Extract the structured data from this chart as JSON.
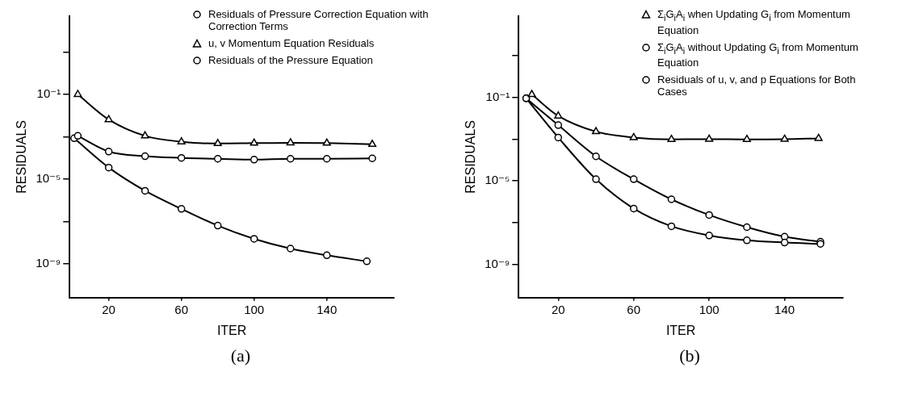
{
  "chart_data": [
    {
      "type": "line",
      "xlabel": "ITER",
      "ylabel": "RESIDUALS",
      "log": "y",
      "legend": "top right",
      "annotations": [
        "(a)"
      ],
      "xlim": [
        -1.5,
        177
      ],
      "xticks": [
        20,
        60,
        100,
        140
      ],
      "ylim": [
        2.5e-11,
        500
      ],
      "yticks": [
        {
          "value": 10,
          "label": null
        },
        {
          "value": 0.1,
          "label": "10⁻¹"
        },
        {
          "value": 0.001,
          "label": null
        },
        {
          "value": 1e-05,
          "label": "10⁻⁵"
        },
        {
          "value": 1e-07,
          "label": null
        },
        {
          "value": 1e-09,
          "label": "10⁻⁹"
        }
      ],
      "series": [
        {
          "name": "Residuals of Pressure Correction Equation with Correction Terms",
          "color": "#000000",
          "marker": "circle",
          "x": [
            3,
            20,
            40,
            60,
            80,
            100,
            120,
            140,
            165
          ],
          "values": [
            0.0011,
            0.0002,
            0.00012,
            0.0001,
            9.1e-05,
            8.3e-05,
            9.1e-05,
            9.1e-05,
            9.5e-05
          ]
        },
        {
          "name": "u, v  Momentum Equation Residuals",
          "color": "#000000",
          "marker": "triangle",
          "x": [
            3,
            20,
            40,
            60,
            80,
            100,
            120,
            140,
            165
          ],
          "values": [
            0.1,
            0.0065,
            0.0011,
            0.00058,
            0.00048,
            0.0005,
            0.00052,
            0.0005,
            0.00044
          ]
        },
        {
          "name": "Residuals of the Pressure Equation",
          "color": "#000000",
          "marker": "circle",
          "x": [
            1,
            20,
            40,
            60,
            80,
            100,
            120,
            140,
            162
          ],
          "values": [
            0.00085,
            3.5e-05,
            2.8e-06,
            3.9e-07,
            6.3e-08,
            1.5e-08,
            5.2e-09,
            2.5e-09,
            1.3e-09
          ]
        }
      ]
    },
    {
      "type": "line",
      "xlabel": "ITER",
      "ylabel": "RESIDUALS",
      "log": "y",
      "legend": "top right",
      "annotations": [
        "(b)"
      ],
      "xlim": [
        -1,
        171
      ],
      "xticks": [
        20,
        60,
        100,
        140
      ],
      "ylim": [
        2.5e-11,
        800
      ],
      "yticks": [
        {
          "value": 10,
          "label": null
        },
        {
          "value": 0.1,
          "label": "10⁻¹"
        },
        {
          "value": 0.001,
          "label": null
        },
        {
          "value": 1e-05,
          "label": "10⁻⁵"
        },
        {
          "value": 1e-07,
          "label": null
        },
        {
          "value": 1e-09,
          "label": "10⁻⁹"
        }
      ],
      "series": [
        {
          "name": "Σ$_{i}$G$_{i}$A$_{i}$ when Updating G$_{i}$ from Momentum Equation",
          "color": "#000000",
          "marker": "triangle",
          "x": [
            6,
            20,
            40,
            60,
            80,
            100,
            120,
            140,
            158
          ],
          "values": [
            0.14,
            0.013,
            0.0023,
            0.0012,
            0.00098,
            0.001,
            0.00098,
            0.001,
            0.0011
          ]
        },
        {
          "name": "Σ$_{i}$G$_{i}$A$_{i}$ without Updating G$_{i}$ from Momentum Equation",
          "color": "#000000",
          "marker": "circle",
          "x": [
            3,
            20,
            40,
            60,
            80,
            100,
            120,
            140,
            159
          ],
          "values": [
            0.091,
            0.0012,
            1.2e-05,
            4.7e-07,
            6.6e-08,
            2.4e-08,
            1.4e-08,
            1.1e-08,
            9.5e-09
          ]
        },
        {
          "name": "Residuals of u, v, and p Equations for Both Cases",
          "color": "#000000",
          "marker": "circle",
          "x": [
            3,
            20,
            40,
            60,
            80,
            100,
            120,
            140,
            159
          ],
          "values": [
            0.091,
            0.0047,
            0.00015,
            1.2e-05,
            1.3e-06,
            2.3e-07,
            6e-08,
            2.1e-08,
            1.2e-08
          ]
        }
      ]
    }
  ]
}
